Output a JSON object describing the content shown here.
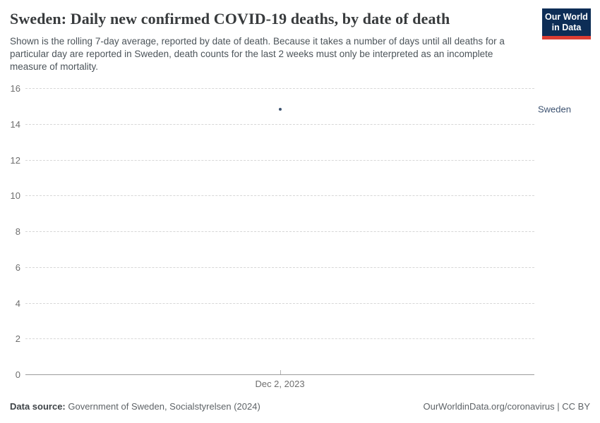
{
  "header": {
    "title": "Sweden: Daily new confirmed COVID-19 deaths, by date of death",
    "subtitle": "Shown is the rolling 7-day average, reported by date of death. Because it takes a number of days until all deaths for a particular day are reported in Sweden, death counts for the last 2 weeks must only be interpreted as an incomplete measure of mortality.",
    "logo": {
      "line1": "Our World",
      "line2": "in Data"
    }
  },
  "chart_data": {
    "type": "scatter",
    "title": "Sweden: Daily new confirmed COVID-19 deaths, by date of death",
    "xlabel": "",
    "ylabel": "",
    "ylim": [
      0,
      16
    ],
    "y_ticks": [
      0,
      2,
      4,
      6,
      8,
      10,
      12,
      14,
      16
    ],
    "x_ticks": [
      {
        "label": "Dec 2, 2023",
        "frac": 0.5
      }
    ],
    "grid": "horizontal-dashed",
    "legend_position": "label-right-of-point",
    "series": [
      {
        "name": "Sweden",
        "color": "#3d5371",
        "points": [
          {
            "x": "Dec 2, 2023",
            "x_frac": 0.5,
            "y": 14.8
          }
        ]
      }
    ]
  },
  "colors": {
    "logo_bg": "#0d2d56",
    "logo_accent": "#dc3d33",
    "series": "#3d5371",
    "gridline": "#d7d7d7",
    "axis_line": "#9b9b9b"
  },
  "footer": {
    "source_label": "Data source:",
    "source_text": " Government of Sweden, Socialstyrelsen (2024)",
    "right_text": "OurWorldinData.org/coronavirus | CC BY"
  }
}
